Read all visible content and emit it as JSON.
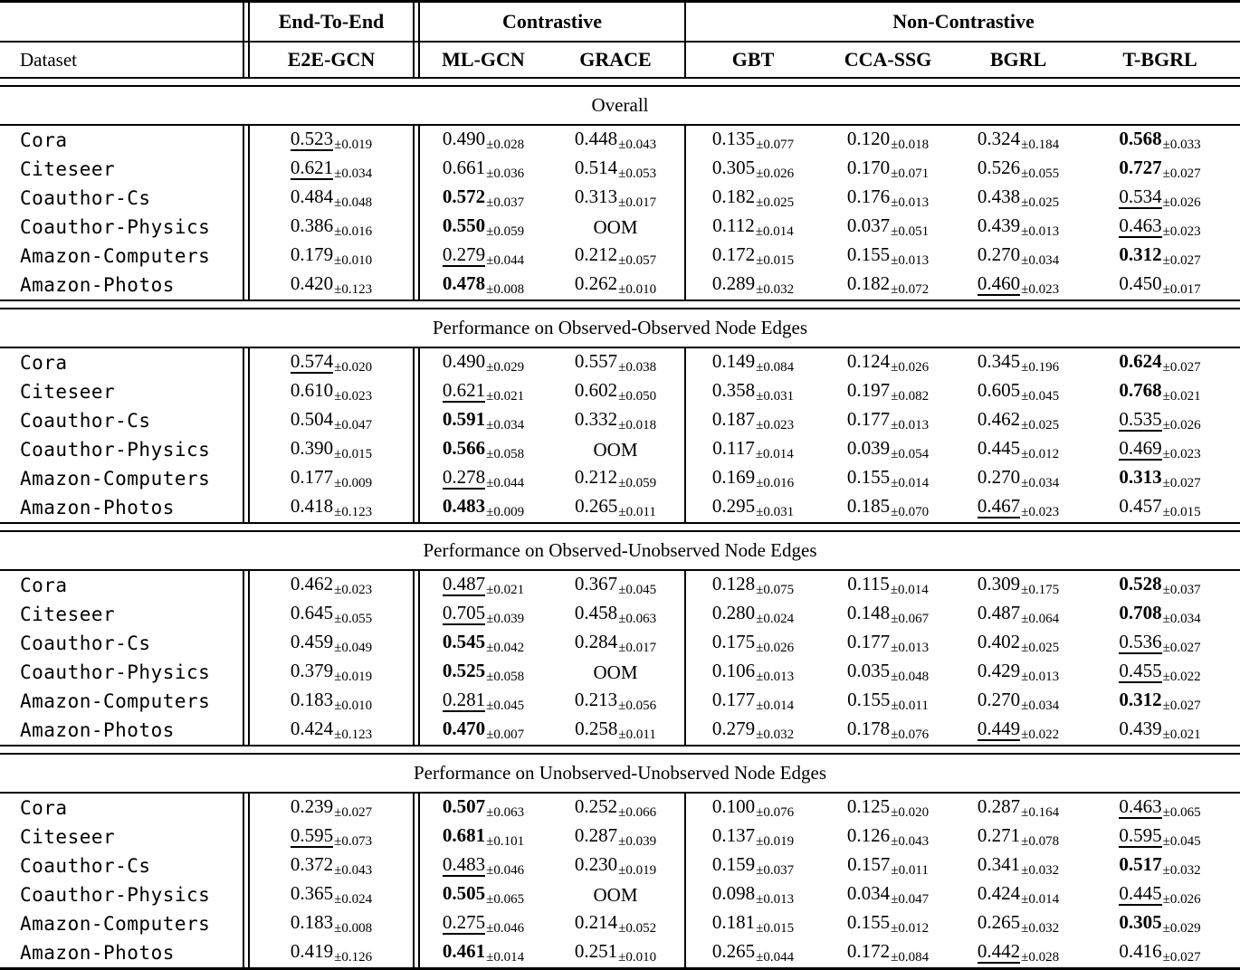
{
  "colors": {
    "text": "#000000",
    "background": "#ffffff"
  },
  "table": {
    "group_headers": [
      "End-To-End",
      "Contrastive",
      "Non-Contrastive"
    ],
    "dataset_header": "Dataset",
    "method_headers": [
      "E2E-GCN",
      "ML-GCN",
      "GRACE",
      "GBT",
      "CCA-SSG",
      "BGRL",
      "T-BGRL"
    ],
    "oom_label": "OOM",
    "sections": [
      {
        "title": "Overall",
        "rows": [
          {
            "dataset": "Cora",
            "cells": [
              {
                "v": "0.523",
                "pm": "0.019",
                "s": "u"
              },
              {
                "v": "0.490",
                "pm": "0.028"
              },
              {
                "v": "0.448",
                "pm": "0.043"
              },
              {
                "v": "0.135",
                "pm": "0.077"
              },
              {
                "v": "0.120",
                "pm": "0.018"
              },
              {
                "v": "0.324",
                "pm": "0.184"
              },
              {
                "v": "0.568",
                "pm": "0.033",
                "s": "b"
              }
            ]
          },
          {
            "dataset": "Citeseer",
            "cells": [
              {
                "v": "0.621",
                "pm": "0.034",
                "s": "u"
              },
              {
                "v": "0.661",
                "pm": "0.036"
              },
              {
                "v": "0.514",
                "pm": "0.053"
              },
              {
                "v": "0.305",
                "pm": "0.026"
              },
              {
                "v": "0.170",
                "pm": "0.071"
              },
              {
                "v": "0.526",
                "pm": "0.055"
              },
              {
                "v": "0.727",
                "pm": "0.027",
                "s": "b"
              }
            ]
          },
          {
            "dataset": "Coauthor-Cs",
            "cells": [
              {
                "v": "0.484",
                "pm": "0.048"
              },
              {
                "v": "0.572",
                "pm": "0.037",
                "s": "b"
              },
              {
                "v": "0.313",
                "pm": "0.017"
              },
              {
                "v": "0.182",
                "pm": "0.025"
              },
              {
                "v": "0.176",
                "pm": "0.013"
              },
              {
                "v": "0.438",
                "pm": "0.025"
              },
              {
                "v": "0.534",
                "pm": "0.026",
                "s": "u"
              }
            ]
          },
          {
            "dataset": "Coauthor-Physics",
            "cells": [
              {
                "v": "0.386",
                "pm": "0.016"
              },
              {
                "v": "0.550",
                "pm": "0.059",
                "s": "b"
              },
              {
                "v": "OOM"
              },
              {
                "v": "0.112",
                "pm": "0.014"
              },
              {
                "v": "0.037",
                "pm": "0.051"
              },
              {
                "v": "0.439",
                "pm": "0.013"
              },
              {
                "v": "0.463",
                "pm": "0.023",
                "s": "u"
              }
            ]
          },
          {
            "dataset": "Amazon-Computers",
            "cells": [
              {
                "v": "0.179",
                "pm": "0.010"
              },
              {
                "v": "0.279",
                "pm": "0.044",
                "s": "u"
              },
              {
                "v": "0.212",
                "pm": "0.057"
              },
              {
                "v": "0.172",
                "pm": "0.015"
              },
              {
                "v": "0.155",
                "pm": "0.013"
              },
              {
                "v": "0.270",
                "pm": "0.034"
              },
              {
                "v": "0.312",
                "pm": "0.027",
                "s": "b"
              }
            ]
          },
          {
            "dataset": "Amazon-Photos",
            "cells": [
              {
                "v": "0.420",
                "pm": "0.123"
              },
              {
                "v": "0.478",
                "pm": "0.008",
                "s": "b"
              },
              {
                "v": "0.262",
                "pm": "0.010"
              },
              {
                "v": "0.289",
                "pm": "0.032"
              },
              {
                "v": "0.182",
                "pm": "0.072"
              },
              {
                "v": "0.460",
                "pm": "0.023",
                "s": "u"
              },
              {
                "v": "0.450",
                "pm": "0.017"
              }
            ]
          }
        ]
      },
      {
        "title": "Performance on Observed-Observed Node Edges",
        "rows": [
          {
            "dataset": "Cora",
            "cells": [
              {
                "v": "0.574",
                "pm": "0.020",
                "s": "u"
              },
              {
                "v": "0.490",
                "pm": "0.029"
              },
              {
                "v": "0.557",
                "pm": "0.038"
              },
              {
                "v": "0.149",
                "pm": "0.084"
              },
              {
                "v": "0.124",
                "pm": "0.026"
              },
              {
                "v": "0.345",
                "pm": "0.196"
              },
              {
                "v": "0.624",
                "pm": "0.027",
                "s": "b"
              }
            ]
          },
          {
            "dataset": "Citeseer",
            "cells": [
              {
                "v": "0.610",
                "pm": "0.023"
              },
              {
                "v": "0.621",
                "pm": "0.021",
                "s": "u"
              },
              {
                "v": "0.602",
                "pm": "0.050"
              },
              {
                "v": "0.358",
                "pm": "0.031"
              },
              {
                "v": "0.197",
                "pm": "0.082"
              },
              {
                "v": "0.605",
                "pm": "0.045"
              },
              {
                "v": "0.768",
                "pm": "0.021",
                "s": "b"
              }
            ]
          },
          {
            "dataset": "Coauthor-Cs",
            "cells": [
              {
                "v": "0.504",
                "pm": "0.047"
              },
              {
                "v": "0.591",
                "pm": "0.034",
                "s": "b"
              },
              {
                "v": "0.332",
                "pm": "0.018"
              },
              {
                "v": "0.187",
                "pm": "0.023"
              },
              {
                "v": "0.177",
                "pm": "0.013"
              },
              {
                "v": "0.462",
                "pm": "0.025"
              },
              {
                "v": "0.535",
                "pm": "0.026",
                "s": "u"
              }
            ]
          },
          {
            "dataset": "Coauthor-Physics",
            "cells": [
              {
                "v": "0.390",
                "pm": "0.015"
              },
              {
                "v": "0.566",
                "pm": "0.058",
                "s": "b"
              },
              {
                "v": "OOM"
              },
              {
                "v": "0.117",
                "pm": "0.014"
              },
              {
                "v": "0.039",
                "pm": "0.054"
              },
              {
                "v": "0.445",
                "pm": "0.012"
              },
              {
                "v": "0.469",
                "pm": "0.023",
                "s": "u"
              }
            ]
          },
          {
            "dataset": "Amazon-Computers",
            "cells": [
              {
                "v": "0.177",
                "pm": "0.009"
              },
              {
                "v": "0.278",
                "pm": "0.044",
                "s": "u"
              },
              {
                "v": "0.212",
                "pm": "0.059"
              },
              {
                "v": "0.169",
                "pm": "0.016"
              },
              {
                "v": "0.155",
                "pm": "0.014"
              },
              {
                "v": "0.270",
                "pm": "0.034"
              },
              {
                "v": "0.313",
                "pm": "0.027",
                "s": "b"
              }
            ]
          },
          {
            "dataset": "Amazon-Photos",
            "cells": [
              {
                "v": "0.418",
                "pm": "0.123"
              },
              {
                "v": "0.483",
                "pm": "0.009",
                "s": "b"
              },
              {
                "v": "0.265",
                "pm": "0.011"
              },
              {
                "v": "0.295",
                "pm": "0.031"
              },
              {
                "v": "0.185",
                "pm": "0.070"
              },
              {
                "v": "0.467",
                "pm": "0.023",
                "s": "u"
              },
              {
                "v": "0.457",
                "pm": "0.015"
              }
            ]
          }
        ]
      },
      {
        "title": "Performance on Observed-Unobserved Node Edges",
        "rows": [
          {
            "dataset": "Cora",
            "cells": [
              {
                "v": "0.462",
                "pm": "0.023"
              },
              {
                "v": "0.487",
                "pm": "0.021",
                "s": "u"
              },
              {
                "v": "0.367",
                "pm": "0.045"
              },
              {
                "v": "0.128",
                "pm": "0.075"
              },
              {
                "v": "0.115",
                "pm": "0.014"
              },
              {
                "v": "0.309",
                "pm": "0.175"
              },
              {
                "v": "0.528",
                "pm": "0.037",
                "s": "b"
              }
            ]
          },
          {
            "dataset": "Citeseer",
            "cells": [
              {
                "v": "0.645",
                "pm": "0.055"
              },
              {
                "v": "0.705",
                "pm": "0.039",
                "s": "u"
              },
              {
                "v": "0.458",
                "pm": "0.063"
              },
              {
                "v": "0.280",
                "pm": "0.024"
              },
              {
                "v": "0.148",
                "pm": "0.067"
              },
              {
                "v": "0.487",
                "pm": "0.064"
              },
              {
                "v": "0.708",
                "pm": "0.034",
                "s": "b"
              }
            ]
          },
          {
            "dataset": "Coauthor-Cs",
            "cells": [
              {
                "v": "0.459",
                "pm": "0.049"
              },
              {
                "v": "0.545",
                "pm": "0.042",
                "s": "b"
              },
              {
                "v": "0.284",
                "pm": "0.017"
              },
              {
                "v": "0.175",
                "pm": "0.026"
              },
              {
                "v": "0.177",
                "pm": "0.013"
              },
              {
                "v": "0.402",
                "pm": "0.025"
              },
              {
                "v": "0.536",
                "pm": "0.027",
                "s": "u"
              }
            ]
          },
          {
            "dataset": "Coauthor-Physics",
            "cells": [
              {
                "v": "0.379",
                "pm": "0.019"
              },
              {
                "v": "0.525",
                "pm": "0.058",
                "s": "b"
              },
              {
                "v": "OOM"
              },
              {
                "v": "0.106",
                "pm": "0.013"
              },
              {
                "v": "0.035",
                "pm": "0.048"
              },
              {
                "v": "0.429",
                "pm": "0.013"
              },
              {
                "v": "0.455",
                "pm": "0.022",
                "s": "u"
              }
            ]
          },
          {
            "dataset": "Amazon-Computers",
            "cells": [
              {
                "v": "0.183",
                "pm": "0.010"
              },
              {
                "v": "0.281",
                "pm": "0.045",
                "s": "u"
              },
              {
                "v": "0.213",
                "pm": "0.056"
              },
              {
                "v": "0.177",
                "pm": "0.014"
              },
              {
                "v": "0.155",
                "pm": "0.011"
              },
              {
                "v": "0.270",
                "pm": "0.034"
              },
              {
                "v": "0.312",
                "pm": "0.027",
                "s": "b"
              }
            ]
          },
          {
            "dataset": "Amazon-Photos",
            "cells": [
              {
                "v": "0.424",
                "pm": "0.123"
              },
              {
                "v": "0.470",
                "pm": "0.007",
                "s": "b"
              },
              {
                "v": "0.258",
                "pm": "0.011"
              },
              {
                "v": "0.279",
                "pm": "0.032"
              },
              {
                "v": "0.178",
                "pm": "0.076"
              },
              {
                "v": "0.449",
                "pm": "0.022",
                "s": "u"
              },
              {
                "v": "0.439",
                "pm": "0.021"
              }
            ]
          }
        ]
      },
      {
        "title": "Performance on Unobserved-Unobserved Node Edges",
        "rows": [
          {
            "dataset": "Cora",
            "cells": [
              {
                "v": "0.239",
                "pm": "0.027"
              },
              {
                "v": "0.507",
                "pm": "0.063",
                "s": "b"
              },
              {
                "v": "0.252",
                "pm": "0.066"
              },
              {
                "v": "0.100",
                "pm": "0.076"
              },
              {
                "v": "0.125",
                "pm": "0.020"
              },
              {
                "v": "0.287",
                "pm": "0.164"
              },
              {
                "v": "0.463",
                "pm": "0.065",
                "s": "u"
              }
            ]
          },
          {
            "dataset": "Citeseer",
            "cells": [
              {
                "v": "0.595",
                "pm": "0.073",
                "s": "u"
              },
              {
                "v": "0.681",
                "pm": "0.101",
                "s": "b"
              },
              {
                "v": "0.287",
                "pm": "0.039"
              },
              {
                "v": "0.137",
                "pm": "0.019"
              },
              {
                "v": "0.126",
                "pm": "0.043"
              },
              {
                "v": "0.271",
                "pm": "0.078"
              },
              {
                "v": "0.595",
                "pm": "0.045",
                "s": "u"
              }
            ]
          },
          {
            "dataset": "Coauthor-Cs",
            "cells": [
              {
                "v": "0.372",
                "pm": "0.043"
              },
              {
                "v": "0.483",
                "pm": "0.046",
                "s": "u"
              },
              {
                "v": "0.230",
                "pm": "0.019"
              },
              {
                "v": "0.159",
                "pm": "0.037"
              },
              {
                "v": "0.157",
                "pm": "0.011"
              },
              {
                "v": "0.341",
                "pm": "0.032"
              },
              {
                "v": "0.517",
                "pm": "0.032",
                "s": "b"
              }
            ]
          },
          {
            "dataset": "Coauthor-Physics",
            "cells": [
              {
                "v": "0.365",
                "pm": "0.024"
              },
              {
                "v": "0.505",
                "pm": "0.065",
                "s": "b"
              },
              {
                "v": "OOM"
              },
              {
                "v": "0.098",
                "pm": "0.013"
              },
              {
                "v": "0.034",
                "pm": "0.047"
              },
              {
                "v": "0.424",
                "pm": "0.014"
              },
              {
                "v": "0.445",
                "pm": "0.026",
                "s": "u"
              }
            ]
          },
          {
            "dataset": "Amazon-Computers",
            "cells": [
              {
                "v": "0.183",
                "pm": "0.008"
              },
              {
                "v": "0.275",
                "pm": "0.046",
                "s": "u"
              },
              {
                "v": "0.214",
                "pm": "0.052"
              },
              {
                "v": "0.181",
                "pm": "0.015"
              },
              {
                "v": "0.155",
                "pm": "0.012"
              },
              {
                "v": "0.265",
                "pm": "0.032"
              },
              {
                "v": "0.305",
                "pm": "0.029",
                "s": "b"
              }
            ]
          },
          {
            "dataset": "Amazon-Photos",
            "cells": [
              {
                "v": "0.419",
                "pm": "0.126"
              },
              {
                "v": "0.461",
                "pm": "0.014",
                "s": "b"
              },
              {
                "v": "0.251",
                "pm": "0.010"
              },
              {
                "v": "0.265",
                "pm": "0.044"
              },
              {
                "v": "0.172",
                "pm": "0.084"
              },
              {
                "v": "0.442",
                "pm": "0.028",
                "s": "u"
              },
              {
                "v": "0.416",
                "pm": "0.027"
              }
            ]
          }
        ]
      }
    ]
  }
}
